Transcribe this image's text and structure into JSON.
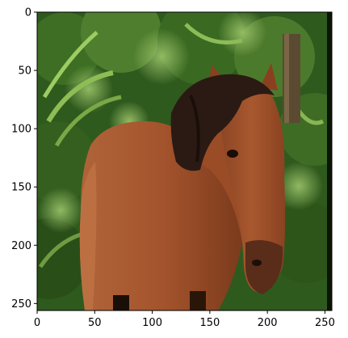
{
  "figure": {
    "image_subject": "horse-photo",
    "image_extent": {
      "x": [
        0,
        256
      ],
      "y": [
        256,
        0
      ]
    },
    "x_ticks": [
      {
        "value": 0,
        "label": "0"
      },
      {
        "value": 50,
        "label": "50"
      },
      {
        "value": 100,
        "label": "100"
      },
      {
        "value": 150,
        "label": "150"
      },
      {
        "value": 200,
        "label": "200"
      },
      {
        "value": 250,
        "label": "250"
      }
    ],
    "y_ticks": [
      {
        "value": 0,
        "label": "0"
      },
      {
        "value": 50,
        "label": "50"
      },
      {
        "value": 100,
        "label": "100"
      },
      {
        "value": 150,
        "label": "150"
      },
      {
        "value": 200,
        "label": "200"
      },
      {
        "value": 250,
        "label": "250"
      }
    ],
    "colors": {
      "horse_coat": "#a0522d",
      "mane": "#2b1a14",
      "foliage_dark": "#1f3d14",
      "foliage_light": "#6e9a3c",
      "fence_post": "#5a4a32"
    }
  }
}
